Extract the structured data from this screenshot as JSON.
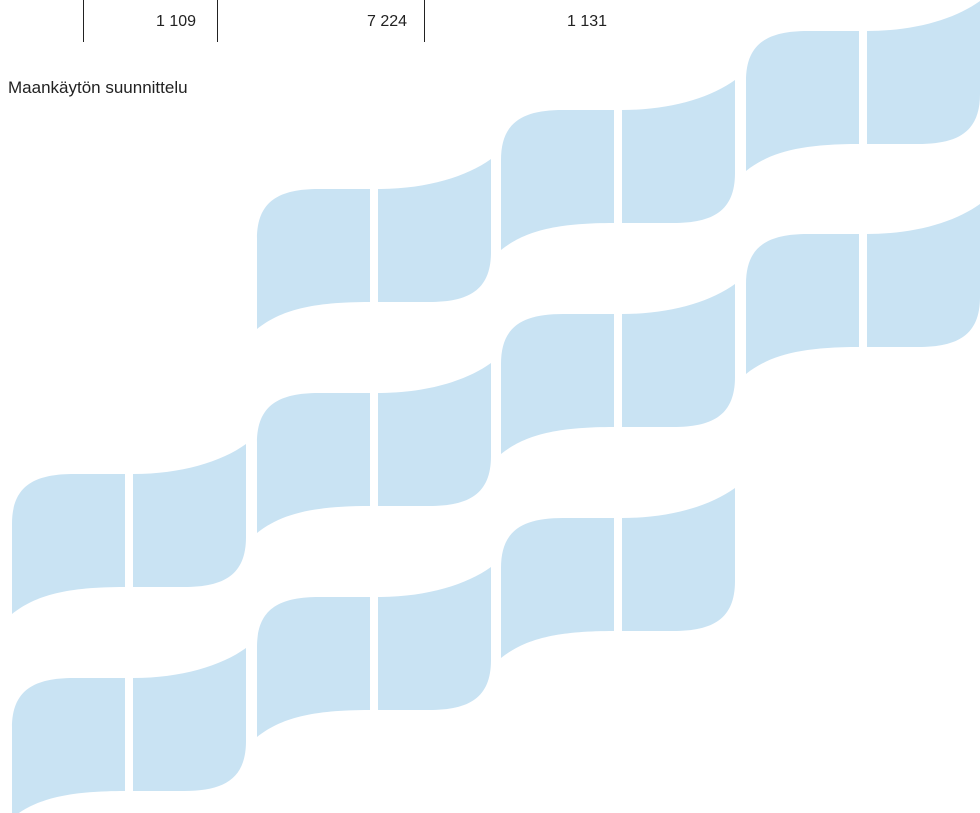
{
  "table_row": {
    "cells": [
      "1 109",
      "7 224",
      "1 131"
    ]
  },
  "section": {
    "heading": "Maankäytön suunnittelu"
  },
  "decoration": {
    "name": "wave-tile-pattern",
    "color": "#c9e3f3"
  }
}
